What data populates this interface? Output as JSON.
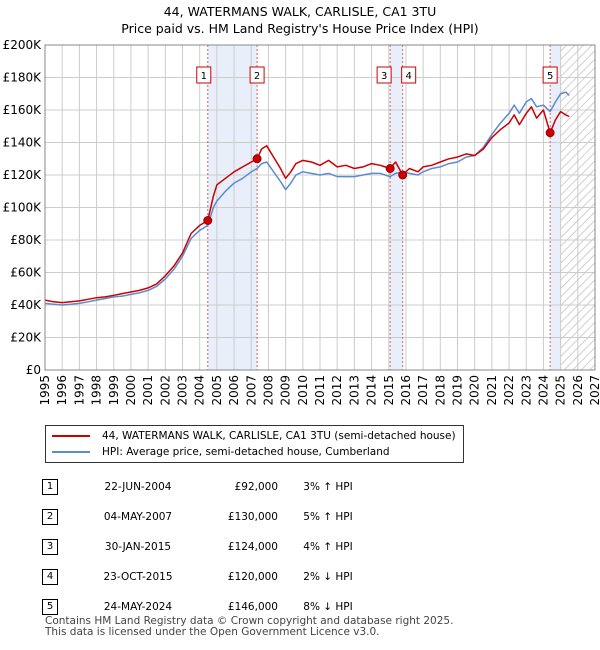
{
  "title_line1": "44, WATERMANS WALK, CARLISLE, CA1 3TU",
  "title_line2": "Price paid vs. HM Land Registry's House Price Index (HPI)",
  "colors": {
    "property": "#cc0000",
    "hpi": "#5b8bd0",
    "shade": "#e8eefa",
    "future": "#d0d0d0",
    "grid": "#cccccc"
  },
  "legend": {
    "property_label": "44, WATERMANS WALK, CARLISLE, CA1 3TU (semi-detached house)",
    "hpi_label": "HPI: Average price, semi-detached house, Cumberland"
  },
  "sales": [
    {
      "num": "1",
      "date": "22-JUN-2004",
      "price": "£92,000",
      "hpi": "3% ↑ HPI"
    },
    {
      "num": "2",
      "date": "04-MAY-2007",
      "price": "£130,000",
      "hpi": "5% ↑ HPI"
    },
    {
      "num": "3",
      "date": "30-JAN-2015",
      "price": "£124,000",
      "hpi": "4% ↑ HPI"
    },
    {
      "num": "4",
      "date": "23-OCT-2015",
      "price": "£120,000",
      "hpi": "2% ↓ HPI"
    },
    {
      "num": "5",
      "date": "24-MAY-2024",
      "price": "£146,000",
      "hpi": "8% ↓ HPI"
    }
  ],
  "footer_line1": "Contains HM Land Registry data © Crown copyright and database right 2025.",
  "footer_line2": "This data is licensed under the Open Government Licence v3.0.",
  "chart_data": {
    "type": "line",
    "xlim": [
      1995,
      2027
    ],
    "ylim": [
      0,
      200000
    ],
    "grid": true,
    "x_ticks": [
      1995,
      1996,
      1997,
      1998,
      1999,
      2000,
      2001,
      2002,
      2003,
      2004,
      2005,
      2006,
      2007,
      2008,
      2009,
      2010,
      2011,
      2012,
      2013,
      2014,
      2015,
      2016,
      2017,
      2018,
      2019,
      2020,
      2021,
      2022,
      2023,
      2024,
      2025,
      2026,
      2027
    ],
    "y_ticks": [
      0,
      20000,
      40000,
      60000,
      80000,
      100000,
      120000,
      140000,
      160000,
      180000,
      200000
    ],
    "y_tick_labels": [
      "£0",
      "£20K",
      "£40K",
      "£60K",
      "£80K",
      "£100K",
      "£120K",
      "£140K",
      "£160K",
      "£180K",
      "£200K"
    ],
    "shaded_ranges": [
      [
        2004.47,
        2007.34
      ],
      [
        2015.08,
        2015.81
      ],
      [
        2024.39,
        2025.0
      ]
    ],
    "future_from": 2025.0,
    "sale_points": [
      {
        "label": "1",
        "x": 2004.47,
        "y": 92000
      },
      {
        "label": "2",
        "x": 2007.34,
        "y": 130000
      },
      {
        "label": "3",
        "x": 2015.08,
        "y": 124000
      },
      {
        "label": "4",
        "x": 2015.81,
        "y": 120000
      },
      {
        "label": "5",
        "x": 2024.39,
        "y": 146000
      }
    ],
    "series": [
      {
        "name": "44, WATERMANS WALK, CARLISLE, CA1 3TU (semi-detached house)",
        "x": [
          1995.0,
          1995.5,
          1996.0,
          1996.5,
          1997.0,
          1997.5,
          1998.0,
          1998.5,
          1999.0,
          1999.5,
          2000.0,
          2000.5,
          2001.0,
          2001.5,
          2002.0,
          2002.5,
          2003.0,
          2003.5,
          2004.0,
          2004.47,
          2004.8,
          2005.0,
          2005.5,
          2006.0,
          2006.5,
          2007.0,
          2007.34,
          2007.6,
          2007.9,
          2008.3,
          2008.7,
          2009.0,
          2009.3,
          2009.6,
          2010.0,
          2010.5,
          2011.0,
          2011.5,
          2012.0,
          2012.5,
          2013.0,
          2013.5,
          2014.0,
          2014.5,
          2015.08,
          2015.4,
          2015.81,
          2016.2,
          2016.7,
          2017.0,
          2017.5,
          2018.0,
          2018.5,
          2019.0,
          2019.5,
          2020.0,
          2020.5,
          2021.0,
          2021.5,
          2022.0,
          2022.3,
          2022.6,
          2023.0,
          2023.3,
          2023.6,
          2024.0,
          2024.39,
          2024.7,
          2025.0,
          2025.3,
          2025.5
        ],
        "y": [
          43000,
          42000,
          41500,
          42000,
          42500,
          43500,
          44500,
          45000,
          46000,
          47000,
          48000,
          49000,
          50500,
          53000,
          58000,
          64000,
          72000,
          84000,
          89000,
          92000,
          107000,
          114000,
          118000,
          122000,
          125000,
          128000,
          130000,
          136000,
          138000,
          131000,
          124000,
          118000,
          122000,
          127000,
          129000,
          128000,
          126000,
          129000,
          125000,
          126000,
          124000,
          125000,
          127000,
          126000,
          124000,
          128000,
          120000,
          124000,
          122000,
          125000,
          126000,
          128000,
          130000,
          131000,
          133000,
          132000,
          136000,
          143000,
          148000,
          152000,
          157000,
          151000,
          158000,
          162000,
          155000,
          160000,
          146000,
          154000,
          159000,
          157000,
          156000
        ]
      },
      {
        "name": "HPI: Average price, semi-detached house, Cumberland",
        "x": [
          1995.0,
          1995.5,
          1996.0,
          1996.5,
          1997.0,
          1997.5,
          1998.0,
          1998.5,
          1999.0,
          1999.5,
          2000.0,
          2000.5,
          2001.0,
          2001.5,
          2002.0,
          2002.5,
          2003.0,
          2003.5,
          2004.0,
          2004.47,
          2004.8,
          2005.0,
          2005.5,
          2006.0,
          2006.5,
          2007.0,
          2007.34,
          2007.6,
          2007.9,
          2008.3,
          2008.7,
          2009.0,
          2009.3,
          2009.6,
          2010.0,
          2010.5,
          2011.0,
          2011.5,
          2012.0,
          2012.5,
          2013.0,
          2013.5,
          2014.0,
          2014.5,
          2015.08,
          2015.4,
          2015.81,
          2016.2,
          2016.7,
          2017.0,
          2017.5,
          2018.0,
          2018.5,
          2019.0,
          2019.5,
          2020.0,
          2020.5,
          2021.0,
          2021.5,
          2022.0,
          2022.3,
          2022.6,
          2023.0,
          2023.3,
          2023.6,
          2024.0,
          2024.39,
          2024.7,
          2025.0,
          2025.3,
          2025.5
        ],
        "y": [
          41000,
          40500,
          40000,
          40500,
          41000,
          42000,
          43000,
          44000,
          45000,
          45500,
          46500,
          47500,
          49000,
          51500,
          56000,
          62000,
          70000,
          81000,
          86000,
          89000,
          100000,
          104000,
          110000,
          115000,
          118000,
          122000,
          124000,
          127000,
          128000,
          122000,
          116000,
          111000,
          115000,
          120000,
          122000,
          121000,
          120000,
          121000,
          119000,
          119000,
          119000,
          120000,
          121000,
          121000,
          119000,
          121000,
          122000,
          121000,
          120000,
          122000,
          124000,
          125000,
          127000,
          128000,
          131000,
          132000,
          137000,
          145000,
          152000,
          158000,
          163000,
          158000,
          165000,
          167000,
          162000,
          163000,
          159000,
          165000,
          170000,
          171000,
          169000
        ]
      }
    ]
  }
}
